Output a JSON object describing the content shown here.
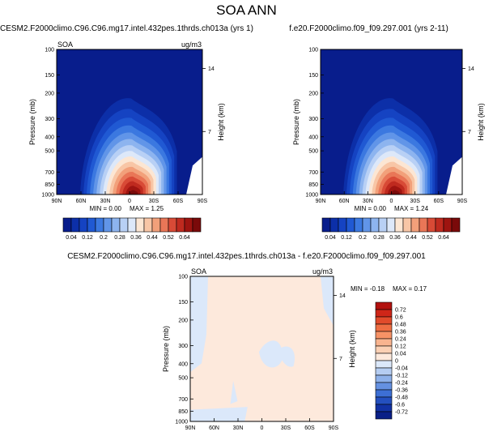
{
  "title": "SOA ANN",
  "colors": {
    "bg": "#ffffff",
    "frame": "#000000",
    "no_data": "#ffffff"
  },
  "chart_data": [
    {
      "type": "heatmap",
      "subtitle": "CESM2.F2000climo.C96.C96.mg17.intel.432pes.1thrds.ch013a (yrs 1)",
      "variable_label": "SOA",
      "units_label": "ug/m3",
      "xlabel": "",
      "ylabel": "Pressure (mb)",
      "y2label": "Height (km)",
      "x_ticks": [
        "90N",
        "60N",
        "30N",
        "0",
        "30S",
        "60S",
        "90S"
      ],
      "y_ticks": [
        "100",
        "150",
        "200",
        "300",
        "400",
        "500",
        "700",
        "850",
        "1000"
      ],
      "y2_ticks": [
        "14",
        "7"
      ],
      "ylim": [
        1000,
        100
      ],
      "xlim": [
        "90N",
        "90S"
      ],
      "y_scale": "log",
      "grid": false,
      "min_label": "MIN =  0.00",
      "max_label": "MAX =   1.25",
      "colorbar": {
        "orientation": "horizontal",
        "labels": [
          "0.04",
          "0.12",
          "0.2",
          "0.28",
          "0.36",
          "0.44",
          "0.52",
          "0.64"
        ],
        "colors": [
          "#081d8c",
          "#0c2fa8",
          "#1543c2",
          "#2059d3",
          "#3b78e0",
          "#6195e8",
          "#8db4ef",
          "#b8d0f5",
          "#dde8f9",
          "#fce6d3",
          "#f8c6a6",
          "#f2a07a",
          "#e97657",
          "#d84a36",
          "#bf2a1f",
          "#9e1410",
          "#7a0a0a"
        ]
      }
    },
    {
      "type": "heatmap",
      "subtitle": "f.e20.F2000climo.f09_f09.297.001 (yrs 2-11)",
      "variable_label": "",
      "units_label": "",
      "xlabel": "",
      "ylabel": "Pressure (mb)",
      "y2label": "Height (km)",
      "x_ticks": [
        "90N",
        "60N",
        "30N",
        "0",
        "30S",
        "60S",
        "90S"
      ],
      "y_ticks": [
        "100",
        "150",
        "200",
        "300",
        "400",
        "500",
        "700",
        "850",
        "1000"
      ],
      "y2_ticks": [
        "14",
        "7"
      ],
      "ylim": [
        1000,
        100
      ],
      "xlim": [
        "90N",
        "90S"
      ],
      "y_scale": "log",
      "grid": false,
      "min_label": "MIN =  0.00",
      "max_label": "MAX =   1.24",
      "colorbar": {
        "orientation": "horizontal",
        "labels": [
          "0.04",
          "0.12",
          "0.2",
          "0.28",
          "0.36",
          "0.44",
          "0.52",
          "0.64"
        ],
        "colors": [
          "#081d8c",
          "#0c2fa8",
          "#1543c2",
          "#2059d3",
          "#3b78e0",
          "#6195e8",
          "#8db4ef",
          "#b8d0f5",
          "#dde8f9",
          "#fce6d3",
          "#f8c6a6",
          "#f2a07a",
          "#e97657",
          "#d84a36",
          "#bf2a1f",
          "#9e1410",
          "#7a0a0a"
        ]
      }
    },
    {
      "type": "heatmap",
      "subtitle": "CESM2.F2000climo.C96.C96.mg17.intel.432pes.1thrds.ch013a - f.e20.F2000climo.f09_f09.297.001",
      "variable_label": "SOA",
      "units_label": "ug/m3",
      "xlabel": "",
      "ylabel": "Pressure (mb)",
      "y2label": "Height (km)",
      "x_ticks": [
        "90N",
        "60N",
        "30N",
        "0",
        "30S",
        "60S",
        "90S"
      ],
      "y_ticks": [
        "100",
        "150",
        "200",
        "300",
        "400",
        "500",
        "700",
        "850",
        "1000"
      ],
      "y2_ticks": [
        "14",
        "7"
      ],
      "ylim": [
        1000,
        100
      ],
      "xlim": [
        "90N",
        "90S"
      ],
      "y_scale": "log",
      "grid": false,
      "min_label": "MIN = -0.18",
      "max_label": "MAX =  0.17",
      "colorbar": {
        "orientation": "vertical",
        "labels": [
          "0.72",
          "0.6",
          "0.48",
          "0.36",
          "0.24",
          "0.12",
          "0.04",
          "0",
          "-0.04",
          "-0.12",
          "-0.24",
          "-0.36",
          "-0.48",
          "-0.6",
          "-0.72"
        ],
        "colors": [
          "#b2110e",
          "#cf2618",
          "#e14b2b",
          "#ee6e43",
          "#f69266",
          "#f9b48f",
          "#fbd0b4",
          "#fde9dc",
          "#dbe8fa",
          "#b5cdf2",
          "#8eb1ea",
          "#6591e1",
          "#3d6fd4",
          "#2450bf",
          "#1232a4",
          "#0a1f87"
        ]
      }
    }
  ]
}
